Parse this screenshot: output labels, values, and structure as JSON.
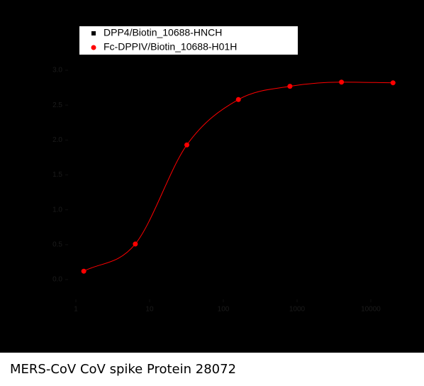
{
  "chart_data": {
    "type": "scatter",
    "caption": "MERS-CoV CoV spike Protein 28072",
    "x_scale": "log",
    "xlim": [
      1,
      30000
    ],
    "xticks": [
      1,
      10,
      100,
      1000,
      10000
    ],
    "ylim": [
      0,
      3
    ],
    "yticks": [
      {
        "value": 0,
        "label": "0.0"
      },
      {
        "value": 0.5,
        "label": "0.5"
      },
      {
        "value": 1,
        "label": "1.0"
      },
      {
        "value": 1.5,
        "label": "1.5"
      },
      {
        "value": 2,
        "label": "2.0"
      },
      {
        "value": 2.5,
        "label": "2.5"
      },
      {
        "value": 3,
        "label": "3.0"
      }
    ],
    "x": [
      1.28,
      6.4,
      32,
      160,
      800,
      4000,
      20000
    ],
    "series": [
      {
        "name": "DPP4/Biotin_10688-HNCH",
        "color": "#000000",
        "marker": "square",
        "values": [
          null,
          null,
          null,
          null,
          null,
          null,
          null
        ]
      },
      {
        "name": "Fc-DPPIV/Biotin_10688-H01H",
        "color": "#ff0000",
        "marker": "circle",
        "fit_line": true,
        "values": [
          0.12,
          0.51,
          1.93,
          2.58,
          2.77,
          2.83,
          2.82
        ]
      }
    ]
  }
}
